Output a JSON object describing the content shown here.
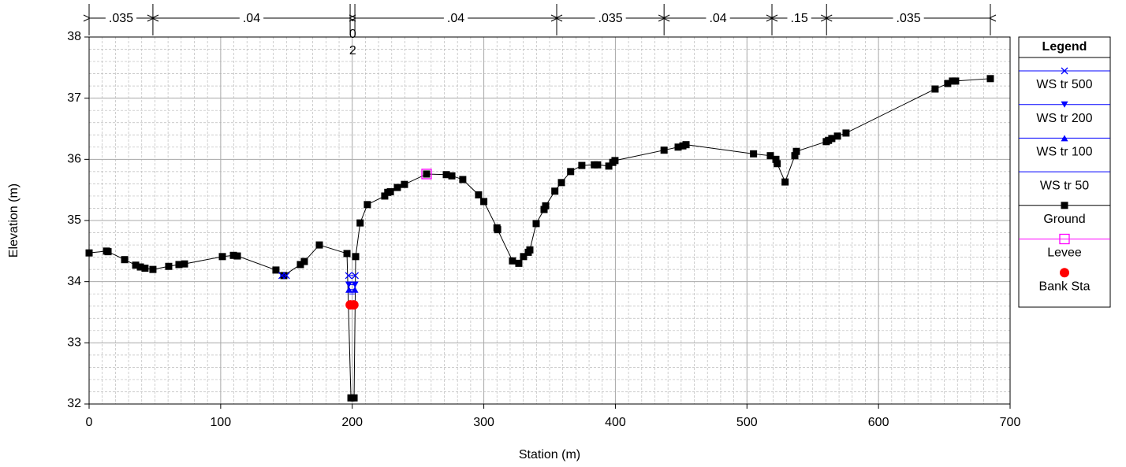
{
  "chart_data": {
    "type": "cross_section",
    "x_label": "Station (m)",
    "y_label": "Elevation (m)",
    "xlim": [
      0,
      700
    ],
    "ylim": [
      32,
      38
    ],
    "xticks": [
      0,
      100,
      200,
      300,
      400,
      500,
      600,
      700
    ],
    "yticks": [
      32,
      33,
      34,
      35,
      36,
      37,
      38
    ],
    "grid": true,
    "x_minor_step": 10,
    "y_minor_step": 0.2,
    "legend_title": "Legend",
    "legend_position": "right",
    "manning_n": {
      "stations": [
        0,
        48.5,
        198.4,
        202,
        355.4,
        437,
        519,
        560.5,
        685
      ],
      "labels": [
        ".035",
        ".04",
        ".02",
        ".04",
        ".035",
        ".04",
        ".15",
        ".035"
      ]
    },
    "series": [
      {
        "name": "WS tr 500",
        "color": "#0000ff",
        "marker": "x",
        "x": [
          146.5,
          150,
          null,
          197.2,
          202.3
        ],
        "values": [
          34.1,
          34.1,
          null,
          34.1,
          34.1
        ]
      },
      {
        "name": "WS tr 200",
        "color": "#0000ff",
        "marker": "tri-down",
        "x": [
          197.4,
          202.1
        ],
        "values": [
          33.95,
          33.95
        ]
      },
      {
        "name": "WS tr 100",
        "color": "#0000ff",
        "marker": "tri-up",
        "x": [
          197.5,
          202
        ],
        "values": [
          33.87,
          33.87
        ]
      },
      {
        "name": "WS tr 50",
        "color": "#0000ff",
        "marker": "none",
        "x": [
          197.6,
          201.9
        ],
        "values": [
          33.8,
          33.8
        ]
      },
      {
        "name": "Ground",
        "color": "#000000",
        "marker": "square",
        "x": [
          0,
          13.2,
          14.4,
          27,
          35.4,
          39,
          42.5,
          48.5,
          60.5,
          68.3,
          72.5,
          101.3,
          109.7,
          112.7,
          142,
          148,
          160.6,
          163.6,
          175,
          196,
          199,
          201.4,
          202.6,
          206,
          211.5,
          224.7,
          227,
          229,
          234.3,
          239.7,
          256.5,
          271.5,
          275.7,
          284,
          296,
          300,
          310,
          310.5,
          321.8,
          326.6,
          330.2,
          333.8,
          335,
          339.8,
          345.8,
          347,
          354,
          359,
          366,
          374.5,
          384,
          386.5,
          395,
          398,
          399.7,
          437,
          447.7,
          451.3,
          453.7,
          505,
          517.8,
          522,
          523,
          529,
          536.4,
          537.6,
          560.3,
          562,
          564.5,
          568.8,
          575.3,
          643,
          652.6,
          656.2,
          658.6,
          685
        ],
        "values": [
          34.47,
          34.5,
          34.49,
          34.36,
          34.27,
          34.24,
          34.22,
          34.2,
          34.25,
          34.28,
          34.29,
          34.41,
          34.43,
          34.42,
          34.19,
          34.1,
          34.28,
          34.33,
          34.6,
          34.46,
          32.1,
          32.1,
          34.41,
          34.96,
          35.26,
          35.4,
          35.46,
          35.47,
          35.54,
          35.59,
          35.76,
          35.75,
          35.73,
          35.67,
          35.42,
          35.31,
          34.88,
          34.85,
          34.34,
          34.3,
          34.41,
          34.48,
          34.52,
          34.95,
          35.18,
          35.24,
          35.48,
          35.62,
          35.8,
          35.9,
          35.91,
          35.91,
          35.89,
          35.95,
          35.98,
          36.15,
          36.2,
          36.22,
          36.24,
          36.09,
          36.06,
          36.0,
          35.93,
          35.63,
          36.06,
          36.13,
          36.29,
          36.31,
          36.34,
          36.38,
          36.43,
          37.15,
          37.24,
          37.28,
          37.28,
          37.32
        ]
      },
      {
        "name": "Levee",
        "color": "#ff00ff",
        "marker": "open-square",
        "x": [
          256.5
        ],
        "values": [
          35.76
        ]
      },
      {
        "name": "Bank Sta",
        "color": "#ff0000",
        "marker": "circle",
        "x": [
          198.5,
          201.2
        ],
        "values": [
          33.62,
          33.62
        ]
      }
    ]
  }
}
